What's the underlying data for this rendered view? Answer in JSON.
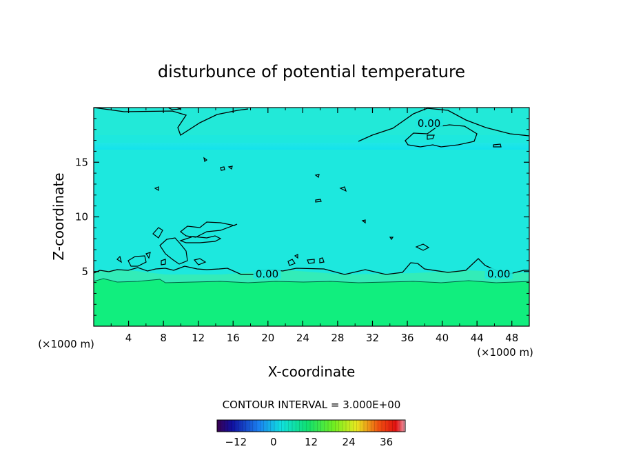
{
  "chart_data": {
    "type": "heatmap",
    "title": "disturbunce of potential temperature",
    "xlabel": "X-coordinate",
    "ylabel": "Z-coordinate",
    "x_unit_left": "(×1000 m)",
    "x_unit_right": "(×1000 m)",
    "xlim": [
      0,
      50
    ],
    "ylim": [
      0,
      20
    ],
    "x_ticks": [
      4,
      8,
      12,
      16,
      20,
      24,
      28,
      32,
      36,
      40,
      44,
      48
    ],
    "y_ticks": [
      5,
      10,
      15
    ],
    "fill_regions": [
      {
        "z_from": 0,
        "z_to": 4.2,
        "value": 3,
        "color": "#11ee7e"
      },
      {
        "z_from": 4.2,
        "z_to": 5.0,
        "value": 1,
        "color": "#33ecb8"
      },
      {
        "z_from": 5.0,
        "z_to": 20,
        "value": -1,
        "color": "#1de8de"
      }
    ],
    "contour_labels": [
      {
        "text": "0.00",
        "x": 38.5,
        "z": 18.5
      },
      {
        "text": "0.00",
        "x": 19.9,
        "z": 4.7
      },
      {
        "text": "0.00",
        "x": 46.5,
        "z": 4.7
      }
    ],
    "contour_interval_text": "CONTOUR INTERVAL = 3.000E+00",
    "colorbar": {
      "min": -18,
      "max": 42,
      "tick_labels": [
        "−12",
        "0",
        "12",
        "24",
        "36"
      ],
      "tick_values": [
        -12,
        0,
        12,
        24,
        36
      ]
    }
  }
}
